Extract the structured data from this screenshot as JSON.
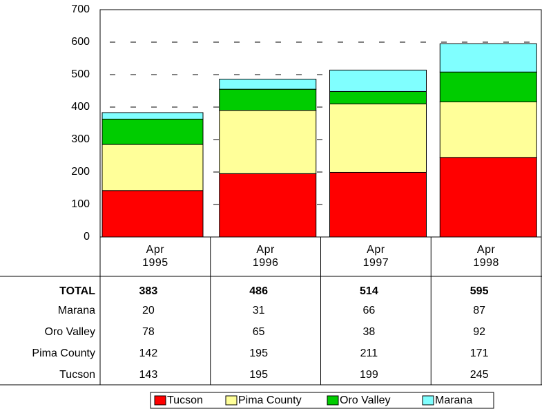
{
  "chart_data": {
    "type": "stacked-bar",
    "categories": [
      "Apr 1995",
      "Apr 1996",
      "Apr 1997",
      "Apr 1998"
    ],
    "series": [
      {
        "name": "Tucson",
        "color": "#ff0000",
        "values": [
          143,
          195,
          199,
          245
        ]
      },
      {
        "name": "Pima County",
        "color": "#ffff99",
        "values": [
          142,
          195,
          211,
          171
        ]
      },
      {
        "name": "Oro Valley",
        "color": "#00cc00",
        "values": [
          78,
          65,
          38,
          92
        ]
      },
      {
        "name": "Marana",
        "color": "#80ffff",
        "values": [
          20,
          31,
          66,
          87
        ]
      }
    ],
    "totals": {
      "name": "TOTAL",
      "values": [
        383,
        486,
        514,
        595
      ]
    },
    "ylim": [
      0,
      700
    ],
    "yticks": [
      0,
      100,
      200,
      300,
      400,
      500,
      600,
      700
    ],
    "grid": true,
    "legend": "bottom"
  }
}
